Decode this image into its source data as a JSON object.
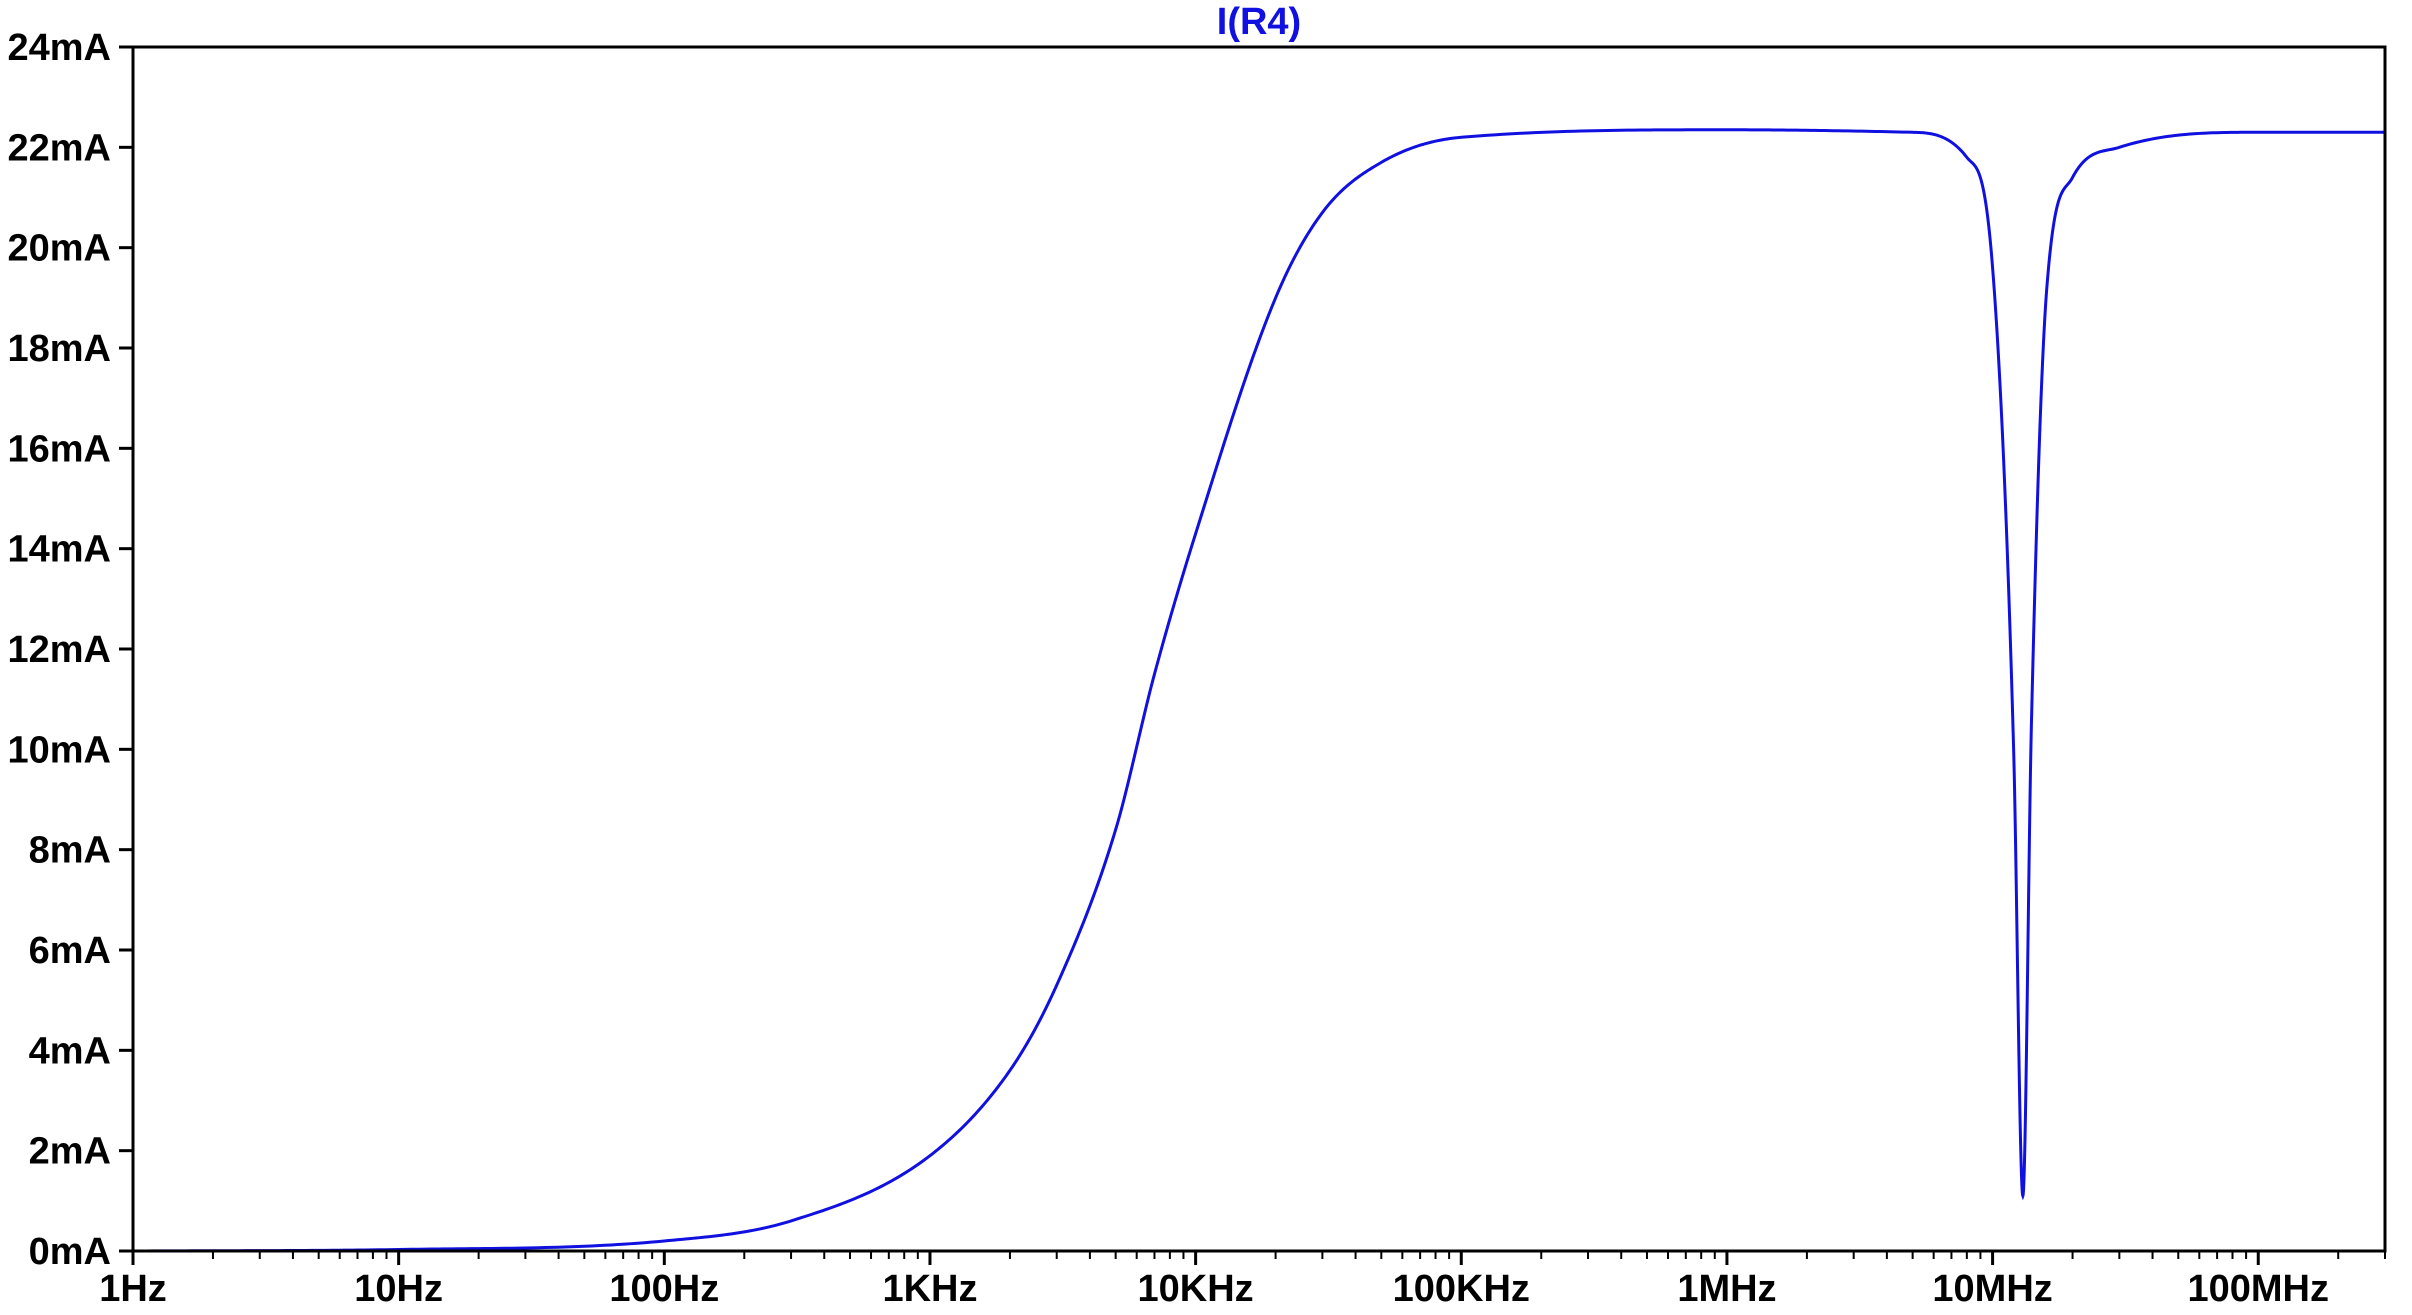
{
  "chart_data": {
    "type": "line",
    "title": "I(R4)",
    "xscale": "log",
    "xlim": [
      1,
      300000000
    ],
    "ylim": [
      0,
      24
    ],
    "y_unit": "mA",
    "x_ticks": [
      {
        "value": 1,
        "label": "1Hz"
      },
      {
        "value": 10,
        "label": "10Hz"
      },
      {
        "value": 100,
        "label": "100Hz"
      },
      {
        "value": 1000,
        "label": "1KHz"
      },
      {
        "value": 10000,
        "label": "10KHz"
      },
      {
        "value": 100000,
        "label": "100KHz"
      },
      {
        "value": 1000000,
        "label": "1MHz"
      },
      {
        "value": 10000000,
        "label": "10MHz"
      },
      {
        "value": 100000000,
        "label": "100MHz"
      }
    ],
    "y_ticks": [
      {
        "value": 0,
        "label": "0mA"
      },
      {
        "value": 2,
        "label": "2mA"
      },
      {
        "value": 4,
        "label": "4mA"
      },
      {
        "value": 6,
        "label": "6mA"
      },
      {
        "value": 8,
        "label": "8mA"
      },
      {
        "value": 10,
        "label": "10mA"
      },
      {
        "value": 12,
        "label": "12mA"
      },
      {
        "value": 14,
        "label": "14mA"
      },
      {
        "value": 16,
        "label": "16mA"
      },
      {
        "value": 18,
        "label": "18mA"
      },
      {
        "value": 20,
        "label": "20mA"
      },
      {
        "value": 22,
        "label": "22mA"
      },
      {
        "value": 24,
        "label": "24mA"
      }
    ],
    "grid": false,
    "series": [
      {
        "name": "I(R4)",
        "color": "#1010e0",
        "x": [
          1,
          10,
          100,
          300,
          1000,
          2000,
          3000,
          5000,
          7000,
          10000,
          20000,
          30000,
          50000,
          100000,
          1000000,
          5000000,
          8000000,
          10000000,
          12000000,
          13000000,
          14000000,
          16000000,
          20000000,
          30000000,
          100000000,
          300000000
        ],
        "values": [
          0.0,
          0.03,
          0.2,
          0.6,
          1.9,
          3.6,
          5.3,
          8.4,
          11.5,
          14.3,
          19.0,
          20.7,
          21.7,
          22.2,
          22.35,
          22.3,
          21.8,
          19.6,
          10.0,
          1.1,
          10.5,
          19.2,
          21.4,
          22.0,
          22.3,
          22.3
        ]
      }
    ]
  }
}
